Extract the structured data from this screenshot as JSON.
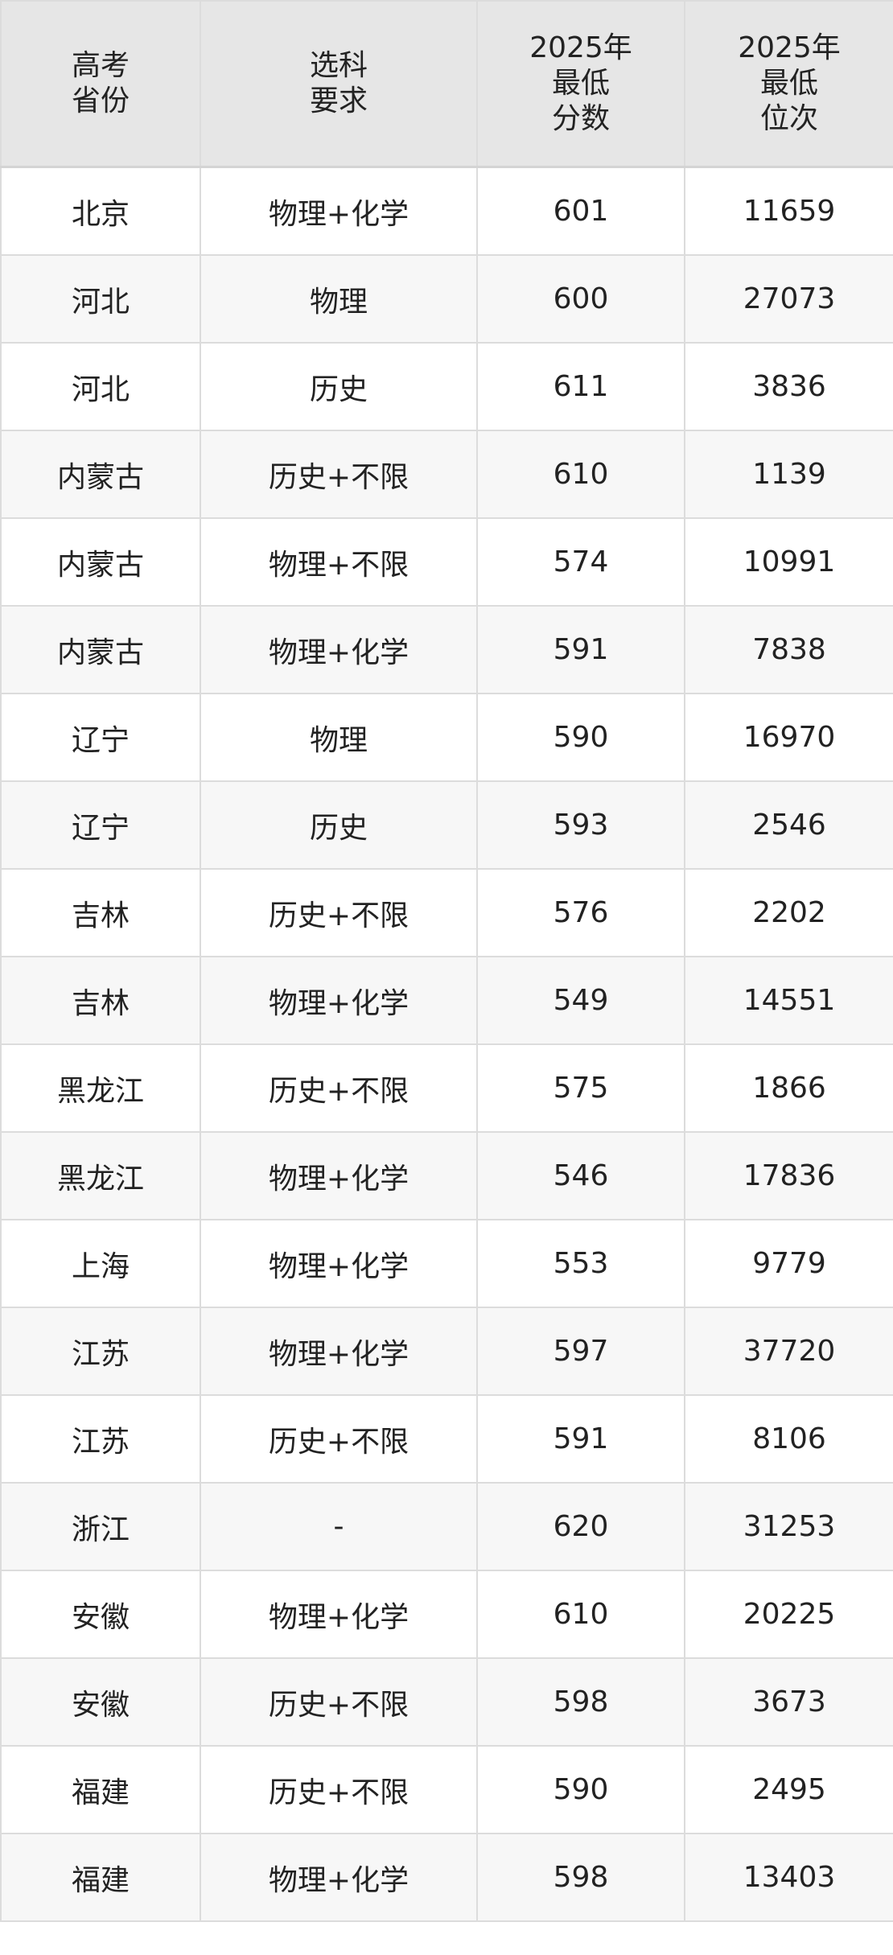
{
  "table": {
    "headers": [
      "高考\n省份",
      "选科\n要求",
      "2025年\n最低\n分数",
      "2025年\n最低\n位次"
    ],
    "rows": [
      [
        "北京",
        "物理+化学",
        "601",
        "11659"
      ],
      [
        "河北",
        "物理",
        "600",
        "27073"
      ],
      [
        "河北",
        "历史",
        "611",
        "3836"
      ],
      [
        "内蒙古",
        "历史+不限",
        "610",
        "1139"
      ],
      [
        "内蒙古",
        "物理+不限",
        "574",
        "10991"
      ],
      [
        "内蒙古",
        "物理+化学",
        "591",
        "7838"
      ],
      [
        "辽宁",
        "物理",
        "590",
        "16970"
      ],
      [
        "辽宁",
        "历史",
        "593",
        "2546"
      ],
      [
        "吉林",
        "历史+不限",
        "576",
        "2202"
      ],
      [
        "吉林",
        "物理+化学",
        "549",
        "14551"
      ],
      [
        "黑龙江",
        "历史+不限",
        "575",
        "1866"
      ],
      [
        "黑龙江",
        "物理+化学",
        "546",
        "17836"
      ],
      [
        "上海",
        "物理+化学",
        "553",
        "9779"
      ],
      [
        "江苏",
        "物理+化学",
        "597",
        "37720"
      ],
      [
        "江苏",
        "历史+不限",
        "591",
        "8106"
      ],
      [
        "浙江",
        "-",
        "620",
        "31253"
      ],
      [
        "安徽",
        "物理+化学",
        "610",
        "20225"
      ],
      [
        "安徽",
        "历史+不限",
        "598",
        "3673"
      ],
      [
        "福建",
        "历史+不限",
        "590",
        "2495"
      ],
      [
        "福建",
        "物理+化学",
        "598",
        "13403"
      ]
    ]
  }
}
